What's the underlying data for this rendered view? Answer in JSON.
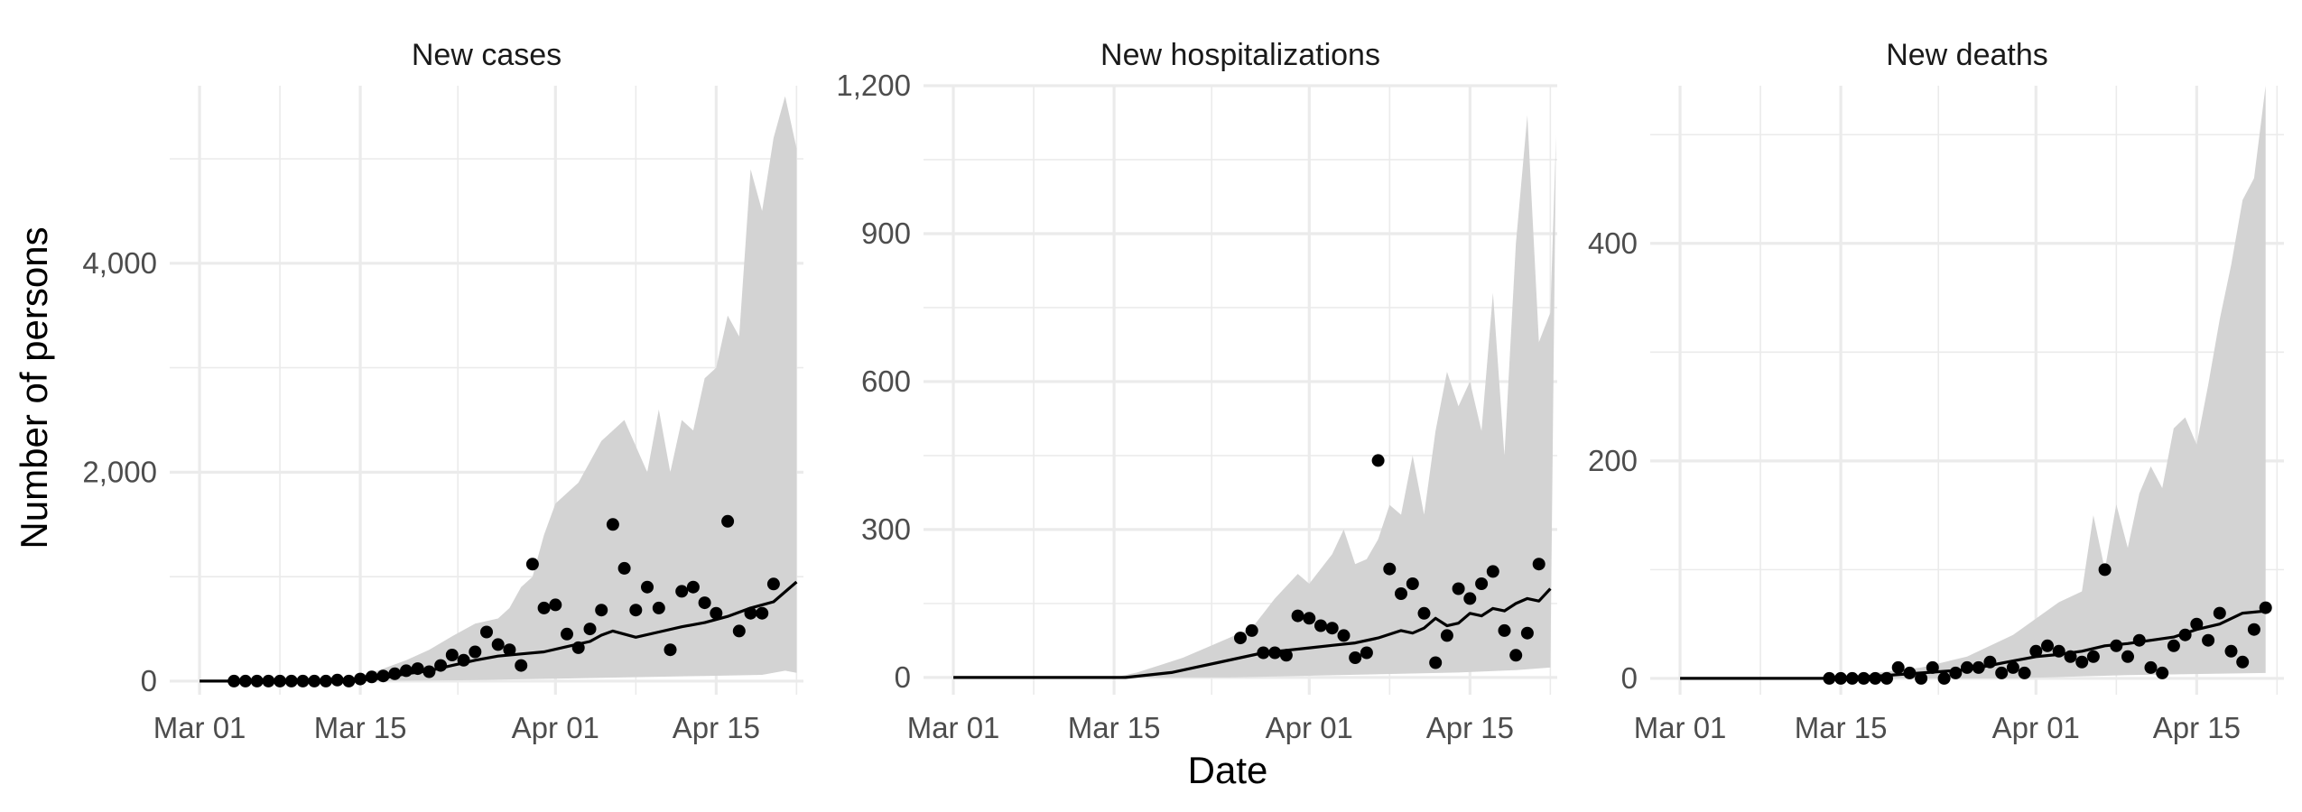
{
  "chart_data": {
    "type": "faceted-line-scatter",
    "ylabel": "Number of persons",
    "xlabel": "Date",
    "x_start": "2020-03-01",
    "x_end": "2020-04-22",
    "x_ticks": [
      "2020-03-01",
      "2020-03-15",
      "2020-04-01",
      "2020-04-15"
    ],
    "x_tick_labels": [
      "Mar 01",
      "Mar 15",
      "Apr 01",
      "Apr 15"
    ],
    "grid": true,
    "colors": {
      "ribbon": "#d3d3d3",
      "line": "#000000",
      "points": "#000000",
      "grid": "#ebebeb"
    },
    "panels": [
      {
        "title": "New cases",
        "ylim": [
          -130,
          5700
        ],
        "y_ticks": [
          0,
          2000,
          4000
        ],
        "y_tick_labels": [
          "0",
          "2,000",
          "4,000"
        ],
        "ribbon_upper": [
          [
            1,
            5
          ],
          [
            10,
            15
          ],
          [
            15,
            40
          ],
          [
            17,
            120
          ],
          [
            19,
            200
          ],
          [
            21,
            300
          ],
          [
            23,
            430
          ],
          [
            25,
            550
          ],
          [
            27,
            600
          ],
          [
            28,
            700
          ],
          [
            29,
            900
          ],
          [
            30,
            1000
          ],
          [
            31,
            1400
          ],
          [
            32,
            1700
          ],
          [
            34,
            1900
          ],
          [
            36,
            2300
          ],
          [
            38,
            2500
          ],
          [
            40,
            2000
          ],
          [
            41,
            2600
          ],
          [
            42,
            2000
          ],
          [
            43,
            2500
          ],
          [
            44,
            2400
          ],
          [
            45,
            2900
          ],
          [
            46,
            3000
          ],
          [
            47,
            3500
          ],
          [
            48,
            3300
          ],
          [
            49,
            4900
          ],
          [
            50,
            4500
          ],
          [
            51,
            5200
          ],
          [
            52,
            5600
          ],
          [
            53,
            5100
          ]
        ],
        "ribbon_lower": [
          [
            1,
            0
          ],
          [
            15,
            0
          ],
          [
            25,
            10
          ],
          [
            35,
            30
          ],
          [
            45,
            50
          ],
          [
            50,
            60
          ],
          [
            52,
            100
          ],
          [
            53,
            80
          ]
        ],
        "line": [
          [
            1,
            0
          ],
          [
            10,
            0
          ],
          [
            15,
            10
          ],
          [
            17,
            30
          ],
          [
            19,
            70
          ],
          [
            21,
            100
          ],
          [
            23,
            150
          ],
          [
            25,
            200
          ],
          [
            27,
            240
          ],
          [
            29,
            260
          ],
          [
            31,
            280
          ],
          [
            33,
            330
          ],
          [
            35,
            380
          ],
          [
            36,
            440
          ],
          [
            37,
            480
          ],
          [
            39,
            420
          ],
          [
            41,
            470
          ],
          [
            43,
            520
          ],
          [
            45,
            560
          ],
          [
            47,
            620
          ],
          [
            49,
            700
          ],
          [
            51,
            760
          ],
          [
            53,
            950
          ]
        ],
        "points": [
          [
            4,
            0
          ],
          [
            5,
            0
          ],
          [
            6,
            0
          ],
          [
            7,
            0
          ],
          [
            8,
            0
          ],
          [
            9,
            0
          ],
          [
            10,
            0
          ],
          [
            11,
            0
          ],
          [
            12,
            0
          ],
          [
            13,
            10
          ],
          [
            14,
            0
          ],
          [
            15,
            20
          ],
          [
            16,
            40
          ],
          [
            17,
            50
          ],
          [
            18,
            70
          ],
          [
            19,
            100
          ],
          [
            20,
            120
          ],
          [
            21,
            90
          ],
          [
            22,
            150
          ],
          [
            23,
            250
          ],
          [
            24,
            200
          ],
          [
            25,
            280
          ],
          [
            26,
            470
          ],
          [
            27,
            350
          ],
          [
            28,
            300
          ],
          [
            29,
            150
          ],
          [
            30,
            1120
          ],
          [
            31,
            700
          ],
          [
            32,
            730
          ],
          [
            33,
            450
          ],
          [
            34,
            320
          ],
          [
            35,
            500
          ],
          [
            36,
            680
          ],
          [
            37,
            1500
          ],
          [
            38,
            1080
          ],
          [
            39,
            680
          ],
          [
            40,
            900
          ],
          [
            41,
            700
          ],
          [
            42,
            300
          ],
          [
            43,
            860
          ],
          [
            44,
            900
          ],
          [
            45,
            750
          ],
          [
            46,
            650
          ],
          [
            47,
            1530
          ],
          [
            48,
            480
          ],
          [
            49,
            650
          ],
          [
            50,
            650
          ],
          [
            51,
            930
          ]
        ]
      },
      {
        "title": "New hospitalizations",
        "ylim": [
          -35,
          1200
        ],
        "y_ticks": [
          0,
          300,
          600,
          900,
          1200
        ],
        "y_tick_labels": [
          "0",
          "300",
          "600",
          "900",
          "1,200"
        ],
        "ribbon_upper": [
          [
            1,
            0
          ],
          [
            15,
            0
          ],
          [
            17,
            10
          ],
          [
            19,
            25
          ],
          [
            21,
            40
          ],
          [
            23,
            60
          ],
          [
            25,
            80
          ],
          [
            27,
            100
          ],
          [
            29,
            160
          ],
          [
            31,
            210
          ],
          [
            32,
            190
          ],
          [
            33,
            220
          ],
          [
            34,
            250
          ],
          [
            35,
            300
          ],
          [
            36,
            230
          ],
          [
            37,
            240
          ],
          [
            38,
            280
          ],
          [
            39,
            350
          ],
          [
            40,
            330
          ],
          [
            41,
            450
          ],
          [
            42,
            330
          ],
          [
            43,
            500
          ],
          [
            44,
            620
          ],
          [
            45,
            550
          ],
          [
            46,
            600
          ],
          [
            47,
            500
          ],
          [
            48,
            780
          ],
          [
            49,
            450
          ],
          [
            50,
            880
          ],
          [
            51,
            1140
          ],
          [
            52,
            680
          ],
          [
            53,
            740
          ],
          [
            53.5,
            1100
          ]
        ],
        "ribbon_lower": [
          [
            1,
            0
          ],
          [
            25,
            0
          ],
          [
            35,
            5
          ],
          [
            45,
            10
          ],
          [
            50,
            15
          ],
          [
            53,
            20
          ]
        ],
        "line": [
          [
            1,
            0
          ],
          [
            16,
            0
          ],
          [
            18,
            5
          ],
          [
            20,
            10
          ],
          [
            22,
            20
          ],
          [
            24,
            30
          ],
          [
            26,
            40
          ],
          [
            28,
            50
          ],
          [
            30,
            55
          ],
          [
            32,
            60
          ],
          [
            34,
            65
          ],
          [
            36,
            70
          ],
          [
            38,
            80
          ],
          [
            40,
            95
          ],
          [
            41,
            90
          ],
          [
            42,
            100
          ],
          [
            43,
            120
          ],
          [
            44,
            105
          ],
          [
            45,
            110
          ],
          [
            46,
            130
          ],
          [
            47,
            125
          ],
          [
            48,
            140
          ],
          [
            49,
            135
          ],
          [
            50,
            150
          ],
          [
            51,
            160
          ],
          [
            52,
            155
          ],
          [
            53,
            180
          ]
        ],
        "points": [
          [
            26,
            80
          ],
          [
            27,
            95
          ],
          [
            28,
            50
          ],
          [
            29,
            50
          ],
          [
            30,
            45
          ],
          [
            31,
            125
          ],
          [
            32,
            120
          ],
          [
            33,
            105
          ],
          [
            34,
            100
          ],
          [
            35,
            85
          ],
          [
            36,
            40
          ],
          [
            37,
            50
          ],
          [
            38,
            440
          ],
          [
            39,
            220
          ],
          [
            40,
            170
          ],
          [
            41,
            190
          ],
          [
            42,
            130
          ],
          [
            43,
            30
          ],
          [
            44,
            85
          ],
          [
            45,
            180
          ],
          [
            46,
            160
          ],
          [
            47,
            190
          ],
          [
            48,
            215
          ],
          [
            49,
            95
          ],
          [
            50,
            45
          ],
          [
            51,
            90
          ],
          [
            52,
            230
          ]
        ]
      },
      {
        "title": "New deaths",
        "ylim": [
          -15,
          545
        ],
        "y_ticks": [
          0,
          200,
          400
        ],
        "y_tick_labels": [
          "0",
          "200",
          "400"
        ],
        "ribbon_upper": [
          [
            1,
            0
          ],
          [
            14,
            0
          ],
          [
            18,
            5
          ],
          [
            22,
            10
          ],
          [
            26,
            20
          ],
          [
            30,
            40
          ],
          [
            32,
            55
          ],
          [
            34,
            70
          ],
          [
            36,
            80
          ],
          [
            37,
            150
          ],
          [
            38,
            100
          ],
          [
            39,
            160
          ],
          [
            40,
            120
          ],
          [
            41,
            170
          ],
          [
            42,
            195
          ],
          [
            43,
            175
          ],
          [
            44,
            230
          ],
          [
            45,
            240
          ],
          [
            46,
            215
          ],
          [
            47,
            270
          ],
          [
            48,
            330
          ],
          [
            49,
            380
          ],
          [
            50,
            440
          ],
          [
            51,
            460
          ],
          [
            52,
            545
          ]
        ],
        "ribbon_lower": [
          [
            1,
            0
          ],
          [
            30,
            0
          ],
          [
            40,
            3
          ],
          [
            52,
            5
          ]
        ],
        "line": [
          [
            1,
            0
          ],
          [
            14,
            0
          ],
          [
            18,
            2
          ],
          [
            22,
            5
          ],
          [
            26,
            8
          ],
          [
            28,
            12
          ],
          [
            30,
            16
          ],
          [
            32,
            20
          ],
          [
            34,
            22
          ],
          [
            36,
            25
          ],
          [
            38,
            30
          ],
          [
            40,
            32
          ],
          [
            42,
            35
          ],
          [
            44,
            38
          ],
          [
            46,
            45
          ],
          [
            48,
            50
          ],
          [
            50,
            60
          ],
          [
            52,
            62
          ]
        ],
        "points": [
          [
            14,
            0
          ],
          [
            15,
            0
          ],
          [
            16,
            0
          ],
          [
            17,
            0
          ],
          [
            18,
            0
          ],
          [
            19,
            0
          ],
          [
            20,
            10
          ],
          [
            21,
            5
          ],
          [
            22,
            0
          ],
          [
            23,
            10
          ],
          [
            24,
            0
          ],
          [
            25,
            5
          ],
          [
            26,
            10
          ],
          [
            27,
            10
          ],
          [
            28,
            15
          ],
          [
            29,
            5
          ],
          [
            30,
            10
          ],
          [
            31,
            5
          ],
          [
            32,
            25
          ],
          [
            33,
            30
          ],
          [
            34,
            25
          ],
          [
            35,
            20
          ],
          [
            36,
            15
          ],
          [
            37,
            20
          ],
          [
            38,
            100
          ],
          [
            39,
            30
          ],
          [
            40,
            20
          ],
          [
            41,
            35
          ],
          [
            42,
            10
          ],
          [
            43,
            5
          ],
          [
            44,
            30
          ],
          [
            45,
            40
          ],
          [
            46,
            50
          ],
          [
            47,
            35
          ],
          [
            48,
            60
          ],
          [
            49,
            25
          ],
          [
            50,
            15
          ],
          [
            51,
            45
          ],
          [
            52,
            65
          ]
        ]
      }
    ]
  }
}
